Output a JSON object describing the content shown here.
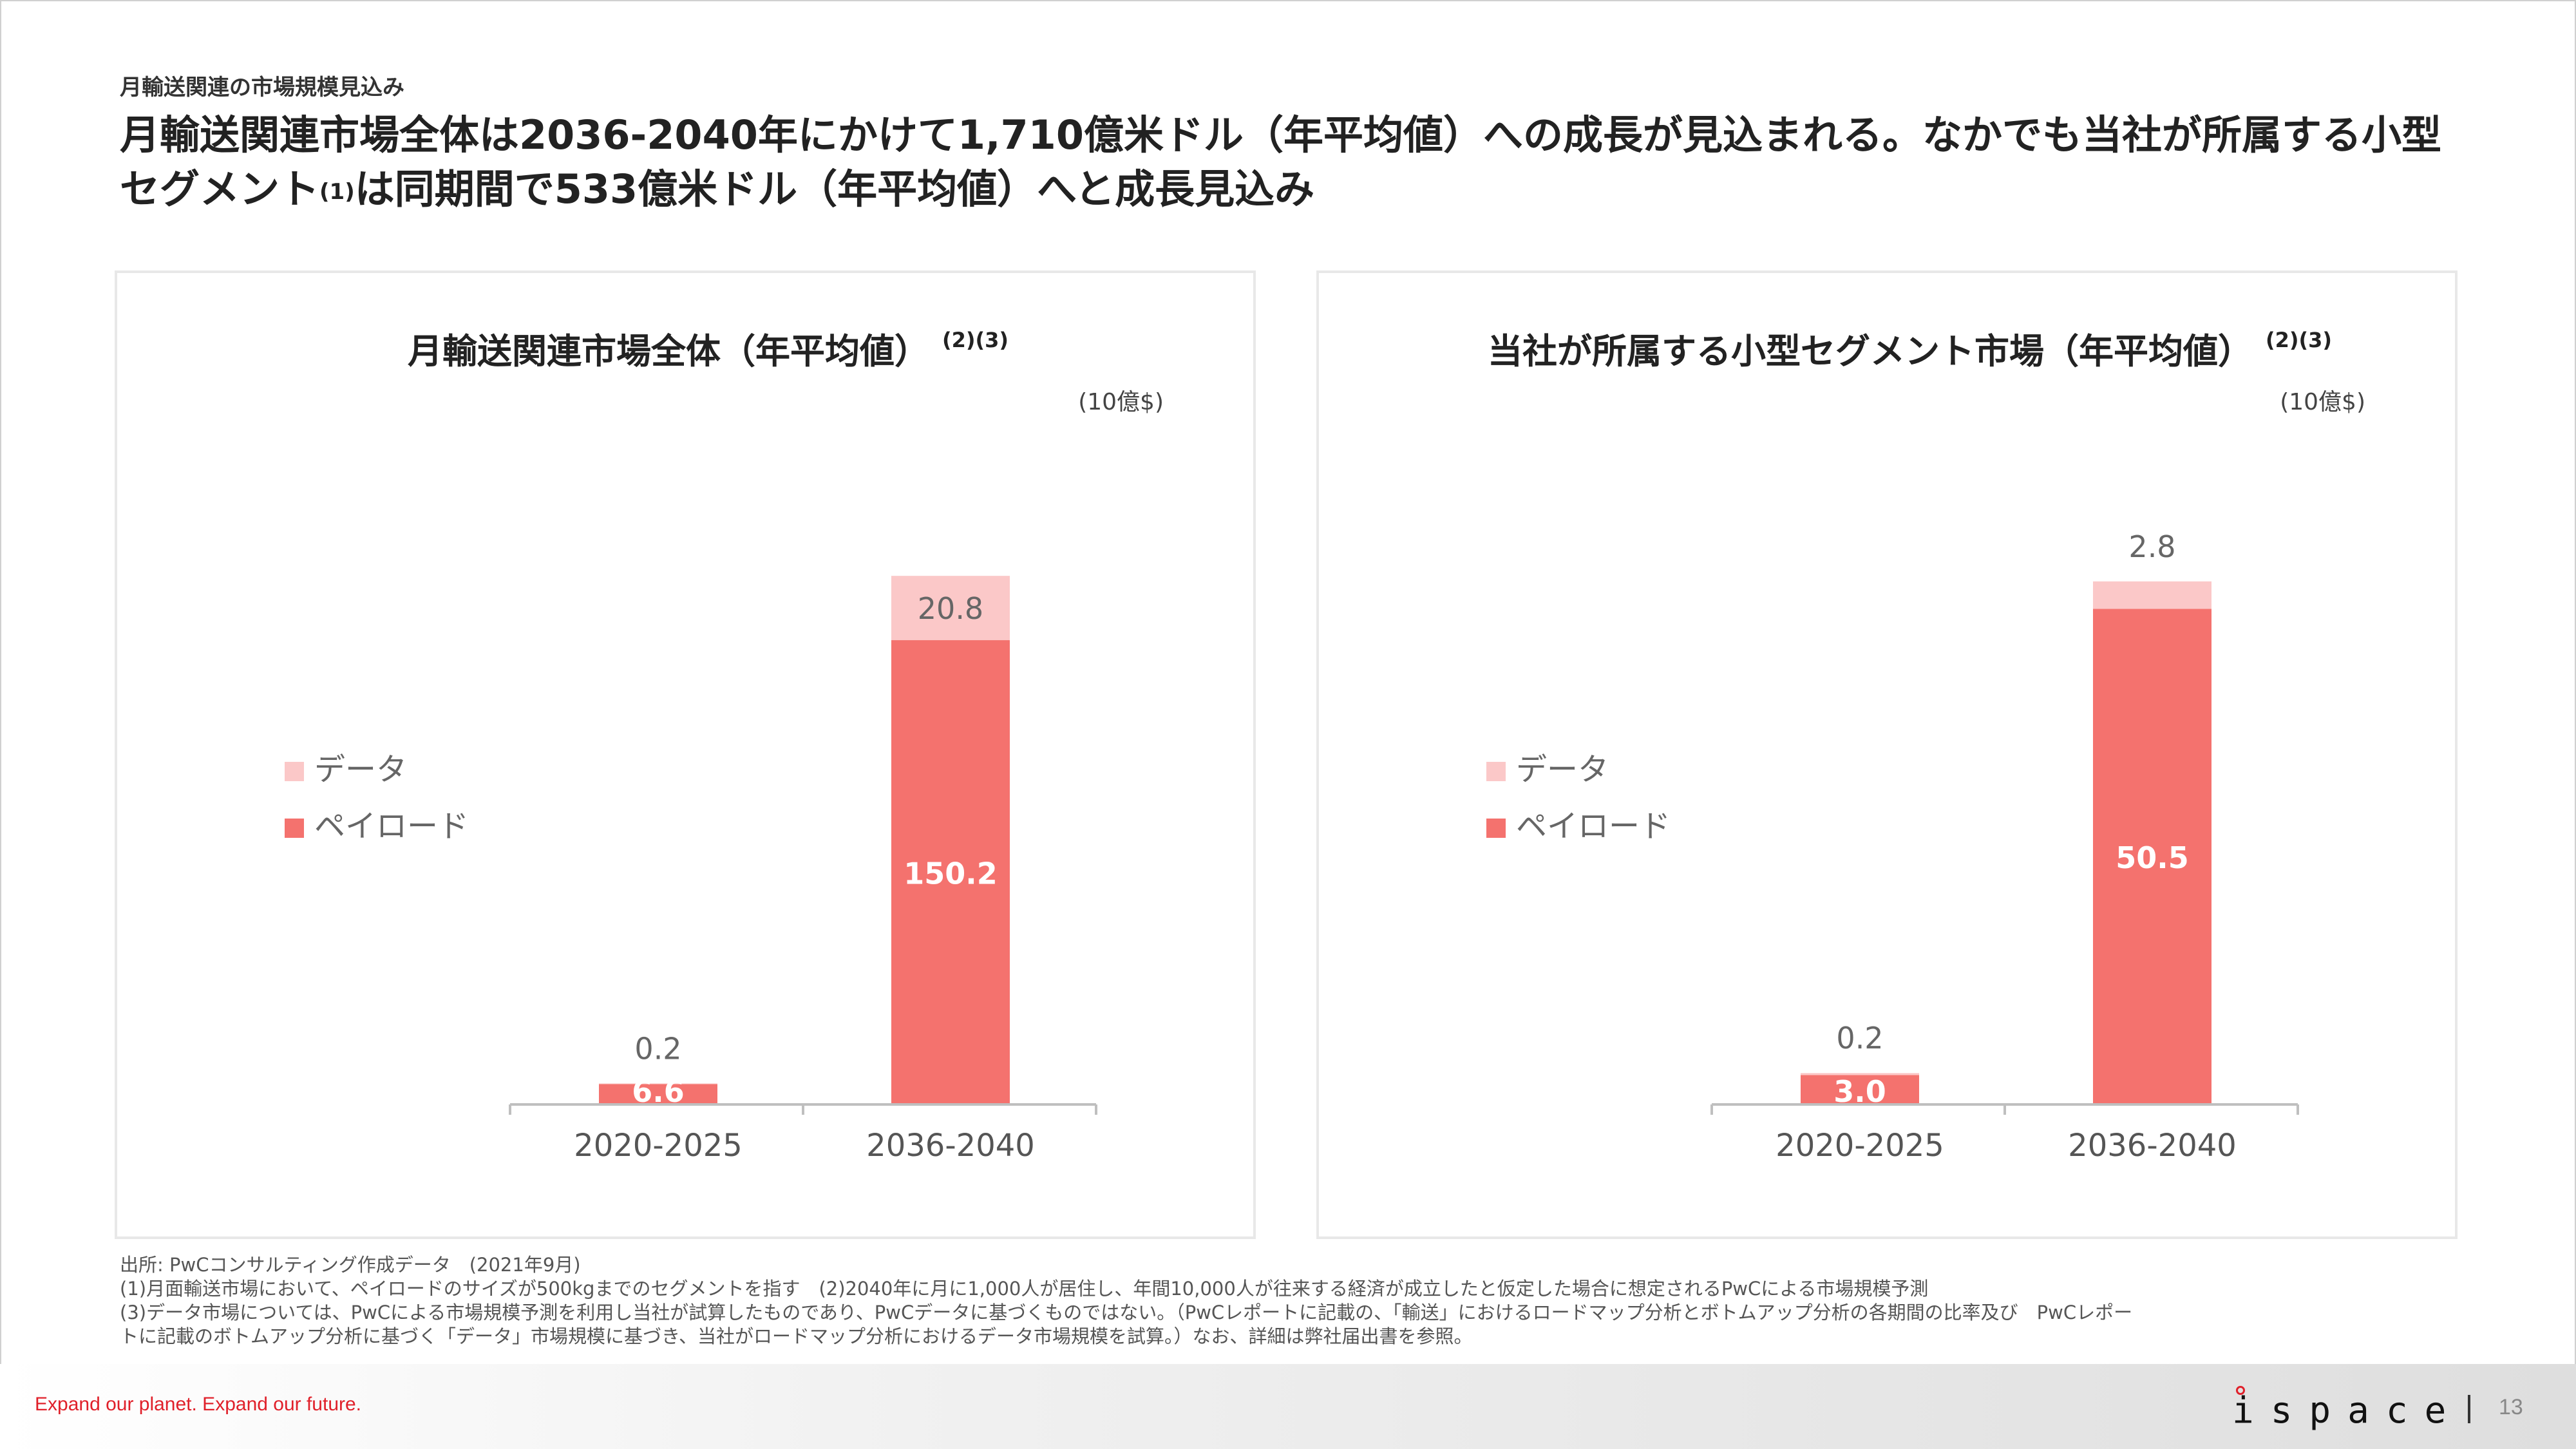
{
  "kicker": "月輸送関連の市場規模見込み",
  "headline": {
    "part1": "月輸送関連市場全体は2036-2040年にかけて1,710億米ドル（年平均値）への成長が見込まれる。なかでも当社が所属する小型セグメント",
    "sup": "(1)",
    "part2": "は同期間で533億米ドル（年平均値）へと成長見込み"
  },
  "colors": {
    "payload": "#f4726e",
    "data": "#fbc8c8",
    "axis": "#bfbfbf"
  },
  "chart_data": [
    {
      "type": "bar",
      "stacked": true,
      "title": "月輸送関連市場全体（年平均値）",
      "title_note": "(2)(3)",
      "unit": "(10億$)",
      "categories": [
        "2020-2025",
        "2036-2040"
      ],
      "series": [
        {
          "name": "ペイロード",
          "values": [
            6.6,
            150.2
          ],
          "labels": [
            "6.6",
            "150.2"
          ],
          "color": "#f4726e"
        },
        {
          "name": "データ",
          "values": [
            0.2,
            20.8
          ],
          "labels": [
            "0.2",
            "20.8"
          ],
          "color": "#fbc8c8"
        }
      ],
      "ylim": [
        0,
        200
      ],
      "legend": "left",
      "grid": false
    },
    {
      "type": "bar",
      "stacked": true,
      "title": "当社が所属する小型セグメント市場（年平均値）",
      "title_note": "(2)(3)",
      "unit": "(10億$)",
      "categories": [
        "2020-2025",
        "2036-2040"
      ],
      "series": [
        {
          "name": "ペイロード",
          "values": [
            3.0,
            50.5
          ],
          "labels": [
            "3.0",
            "50.5"
          ],
          "color": "#f4726e"
        },
        {
          "name": "データ",
          "values": [
            0.2,
            2.8
          ],
          "labels": [
            "0.2",
            "2.8"
          ],
          "color": "#fbc8c8"
        }
      ],
      "ylim": [
        0,
        63
      ],
      "legend": "left",
      "grid": false
    }
  ],
  "notes": [
    "出所: PwCコンサルティング作成データ　(2021年9月)",
    "(1)月面輸送市場において、ペイロードのサイズが500kgまでのセグメントを指す　(2)2040年に月に1,000人が居住し、年間10,000人が往来する経済が成立したと仮定した場合に想定されるPwCによる市場規模予測",
    "(3)データ市場については、PwCによる市場規模予測を利用し当社が試算したものであり、PwCデータに基づくものではない。（PwCレポートに記載の、「輸送」におけるロードマップ分析とボトムアップ分析の各期間の比率及び　PwCレポー",
    "トに記載のボトムアップ分析に基づく「データ」市場規模に基づき、当社がロードマップ分析におけるデータ市場規模を試算。）なお、詳細は弊社届出書を参照。"
  ],
  "footer": {
    "tagline": "Expand our planet. Expand our future.",
    "logo": "ispace",
    "page": "13"
  }
}
